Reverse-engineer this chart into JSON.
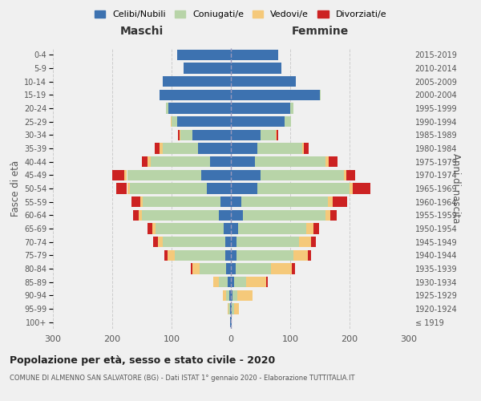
{
  "age_groups": [
    "100+",
    "95-99",
    "90-94",
    "85-89",
    "80-84",
    "75-79",
    "70-74",
    "65-69",
    "60-64",
    "55-59",
    "50-54",
    "45-49",
    "40-44",
    "35-39",
    "30-34",
    "25-29",
    "20-24",
    "15-19",
    "10-14",
    "5-9",
    "0-4"
  ],
  "birth_years": [
    "≤ 1919",
    "1920-1924",
    "1925-1929",
    "1930-1934",
    "1935-1939",
    "1940-1944",
    "1945-1949",
    "1950-1954",
    "1955-1959",
    "1960-1964",
    "1965-1969",
    "1970-1974",
    "1975-1979",
    "1980-1984",
    "1985-1989",
    "1990-1994",
    "1995-1999",
    "2000-2004",
    "2005-2009",
    "2010-2014",
    "2015-2019"
  ],
  "maschi": {
    "celibi": [
      1,
      2,
      3,
      5,
      8,
      10,
      10,
      12,
      20,
      18,
      40,
      50,
      35,
      55,
      65,
      90,
      105,
      120,
      115,
      80,
      90
    ],
    "coniugati": [
      0,
      2,
      5,
      15,
      45,
      85,
      105,
      115,
      130,
      130,
      130,
      125,
      100,
      60,
      20,
      10,
      5,
      0,
      0,
      0,
      0
    ],
    "vedovi": [
      0,
      2,
      5,
      10,
      12,
      12,
      8,
      5,
      5,
      5,
      5,
      5,
      5,
      5,
      2,
      2,
      0,
      0,
      0,
      0,
      0
    ],
    "divorziati": [
      0,
      0,
      0,
      0,
      2,
      5,
      8,
      8,
      10,
      15,
      18,
      20,
      10,
      8,
      2,
      0,
      0,
      0,
      0,
      0,
      0
    ]
  },
  "femmine": {
    "nubili": [
      1,
      2,
      3,
      5,
      8,
      10,
      10,
      12,
      20,
      18,
      45,
      50,
      40,
      45,
      50,
      90,
      100,
      150,
      110,
      85,
      80
    ],
    "coniugate": [
      0,
      3,
      8,
      20,
      60,
      95,
      105,
      115,
      140,
      145,
      155,
      140,
      120,
      75,
      25,
      12,
      5,
      2,
      0,
      0,
      0
    ],
    "vedove": [
      0,
      8,
      25,
      35,
      35,
      25,
      20,
      12,
      8,
      8,
      5,
      5,
      5,
      3,
      2,
      0,
      0,
      0,
      0,
      0,
      0
    ],
    "divorziate": [
      0,
      0,
      0,
      2,
      5,
      5,
      8,
      10,
      10,
      25,
      30,
      15,
      15,
      8,
      3,
      0,
      0,
      0,
      0,
      0,
      0
    ]
  },
  "colors": {
    "celibi": "#3d72b0",
    "coniugati": "#b8d4a8",
    "vedovi": "#f5c97a",
    "divorziati": "#cc2222"
  },
  "xlim": 300,
  "title": "Popolazione per età, sesso e stato civile - 2020",
  "subtitle": "COMUNE DI ALMENNO SAN SALVATORE (BG) - Dati ISTAT 1° gennaio 2020 - Elaborazione TUTTITALIA.IT",
  "ylabel_left": "Fasce di età",
  "ylabel_right": "Anni di nascita",
  "xlabel_maschi": "Maschi",
  "xlabel_femmine": "Femmine",
  "bg_color": "#f0f0f0",
  "legend_labels": [
    "Celibi/Nubili",
    "Coniugati/e",
    "Vedovi/e",
    "Divorziati/e"
  ]
}
